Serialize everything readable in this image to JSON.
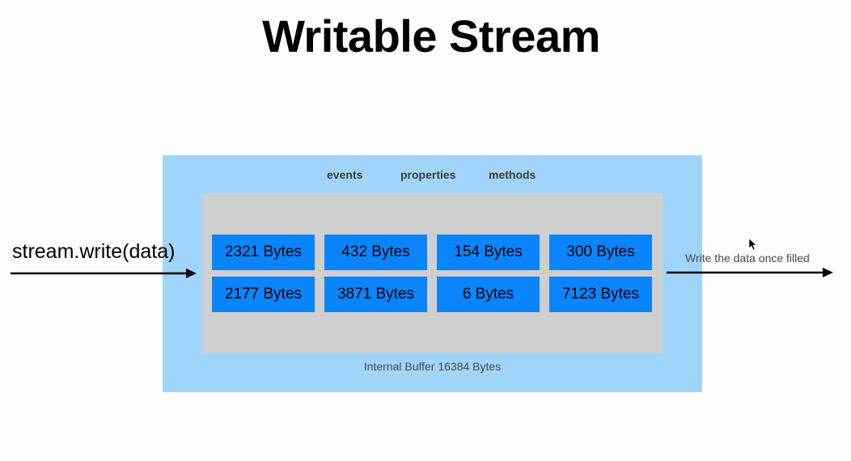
{
  "title": "Writable Stream",
  "tabs": {
    "events": "events",
    "properties": "properties",
    "methods": "methods"
  },
  "buffer": {
    "label": "Internal Buffer 16384 Bytes",
    "chunks": [
      "2321 Bytes",
      "432 Bytes",
      "154 Bytes",
      "300 Bytes",
      "2177 Bytes",
      "3871 Bytes",
      "6 Bytes",
      "7123 Bytes"
    ]
  },
  "input_label": "stream.write(data)",
  "output_label": "Write the data once filled",
  "colors": {
    "outer_box": "#a0d5f9",
    "buffer": "#cfcfcf",
    "chunk": "#0a84ff"
  }
}
